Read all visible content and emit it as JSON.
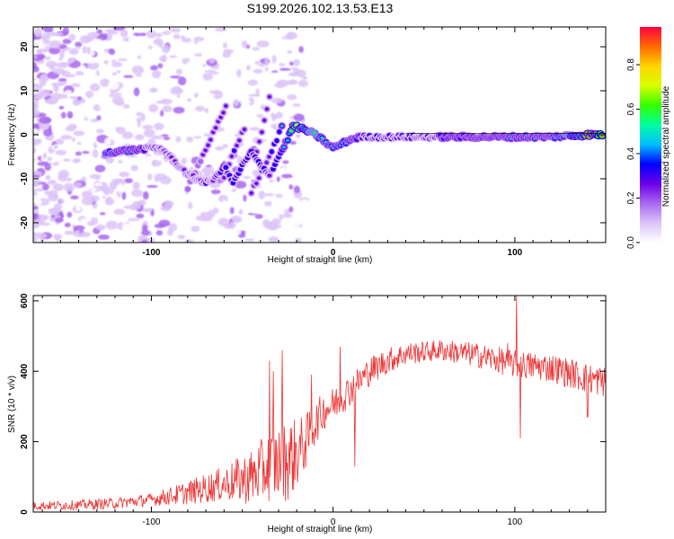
{
  "chart_data": [
    {
      "type": "heatmap",
      "title": "S199.2026.102.13.53.E13",
      "xlabel": "Height of straight line (km)",
      "ylabel": "Frequency (Hz)",
      "xlim": [
        -165,
        150
      ],
      "ylim": [
        -24.5,
        24.5
      ],
      "x_ticks": [
        -100,
        0,
        100
      ],
      "x_tick_labels": [
        "-100",
        "0",
        "100"
      ],
      "y_ticks": [
        -20,
        -10,
        0,
        10,
        20
      ],
      "y_tick_labels": [
        "-20",
        "-10",
        "0",
        "10",
        "20"
      ],
      "colorbar": {
        "label": "Normalized spectral amplitude",
        "ticks": [
          0.0,
          0.2,
          0.4,
          0.6,
          0.8
        ],
        "tick_labels": [
          "0.0",
          "0.2",
          "0.4",
          "0.6",
          "0.8"
        ],
        "range": [
          0,
          0.97
        ],
        "colors": [
          "#ffffff",
          "#dcc4f8",
          "#a868f0",
          "#6a00e8",
          "#0000ff",
          "#00bfff",
          "#00ff9f",
          "#33ff00",
          "#d8ff00",
          "#ffd400",
          "#ff6a00",
          "#ff0040"
        ]
      },
      "ridge_main": {
        "x": [
          -125,
          -110,
          -100,
          -95,
          -90,
          -85,
          -80,
          -75,
          -70,
          -65,
          -60,
          -55,
          -50,
          -45,
          -40,
          -35,
          -30,
          -25,
          -22,
          -18,
          -12,
          -6,
          -2,
          0,
          5,
          10,
          15,
          20,
          40,
          60,
          80,
          100,
          120,
          140,
          148
        ],
        "freq": [
          -4,
          -3.5,
          -3,
          -3,
          -5,
          -7,
          -9,
          -10,
          -11,
          -10,
          -7,
          -11,
          -7,
          -4,
          -7,
          -9,
          -5,
          -1,
          2,
          1.5,
          0.5,
          -1,
          -2.5,
          -3,
          -2,
          -1,
          -0.5,
          -0.5,
          -0.5,
          -0.5,
          -0.5,
          -0.5,
          -0.5,
          0,
          0
        ],
        "amp": [
          0.45,
          0.42,
          0.35,
          0.3,
          0.25,
          0.22,
          0.25,
          0.3,
          0.32,
          0.3,
          0.38,
          0.32,
          0.35,
          0.38,
          0.35,
          0.3,
          0.35,
          0.45,
          0.72,
          0.7,
          0.6,
          0.55,
          0.55,
          0.5,
          0.5,
          0.42,
          0.38,
          0.35,
          0.35,
          0.38,
          0.4,
          0.42,
          0.4,
          0.85,
          0.9
        ]
      },
      "ridge_branches": [
        {
          "x": [
            -80,
            -72,
            -64,
            -58
          ],
          "freq": [
            -12,
            -5,
            2,
            7
          ],
          "amp": [
            0.22,
            0.22,
            0.25,
            0.25
          ]
        },
        {
          "x": [
            -60,
            -54,
            -48
          ],
          "freq": [
            -10,
            -3,
            2
          ],
          "amp": [
            0.25,
            0.32,
            0.25
          ]
        },
        {
          "x": [
            -42,
            -38,
            -34
          ],
          "freq": [
            -4,
            3,
            10
          ],
          "amp": [
            0.28,
            0.3,
            0.22
          ]
        },
        {
          "x": [
            -45,
            -40,
            -35,
            -28
          ],
          "freq": [
            -13,
            -9,
            -5,
            2
          ],
          "amp": [
            0.25,
            0.3,
            0.3,
            0.4
          ]
        }
      ]
    },
    {
      "type": "line",
      "xlabel": "Height of straight line (km)",
      "ylabel": "SNR (10 * v/v)",
      "xlim": [
        -165,
        150
      ],
      "ylim": [
        0,
        615
      ],
      "x_ticks": [
        -100,
        0,
        100
      ],
      "x_tick_labels": [
        "-100",
        "0",
        "100"
      ],
      "y_ticks": [
        0,
        200,
        400,
        600
      ],
      "y_tick_labels": [
        "0",
        "200",
        "400",
        "600"
      ],
      "series": [
        {
          "name": "SNR",
          "color": "#ee3333",
          "x_start": -165,
          "x_end": 150,
          "n_points": 900,
          "trend": {
            "x": [
              -165,
              -140,
              -120,
              -100,
              -80,
              -60,
              -45,
              -35,
              -25,
              -20,
              -15,
              -10,
              -5,
              0,
              10,
              20,
              30,
              40,
              60,
              80,
              100,
              120,
              140,
              150
            ],
            "y": [
              18,
              20,
              25,
              35,
              55,
              80,
              100,
              130,
              150,
              165,
              200,
              250,
              290,
              305,
              350,
              400,
              430,
              450,
              460,
              445,
              420,
              410,
              380,
              370
            ]
          },
          "spread": {
            "x": [
              -165,
              -100,
              -60,
              -40,
              -25,
              -10,
              0,
              50,
              100,
              150
            ],
            "y": [
              12,
              18,
              50,
              90,
              120,
              60,
              50,
              30,
              40,
              45
            ]
          },
          "spikes": [
            {
              "x": -35,
              "y": 430
            },
            {
              "x": -33,
              "y": 400
            },
            {
              "x": -28,
              "y": 460
            },
            {
              "x": -12,
              "y": 390
            },
            {
              "x": 4,
              "y": 470
            },
            {
              "x": 12,
              "y": 130
            },
            {
              "x": 96,
              "y": 480
            },
            {
              "x": 101,
              "y": 615
            },
            {
              "x": 103,
              "y": 210
            },
            {
              "x": 140,
              "y": 270
            }
          ]
        }
      ]
    }
  ]
}
